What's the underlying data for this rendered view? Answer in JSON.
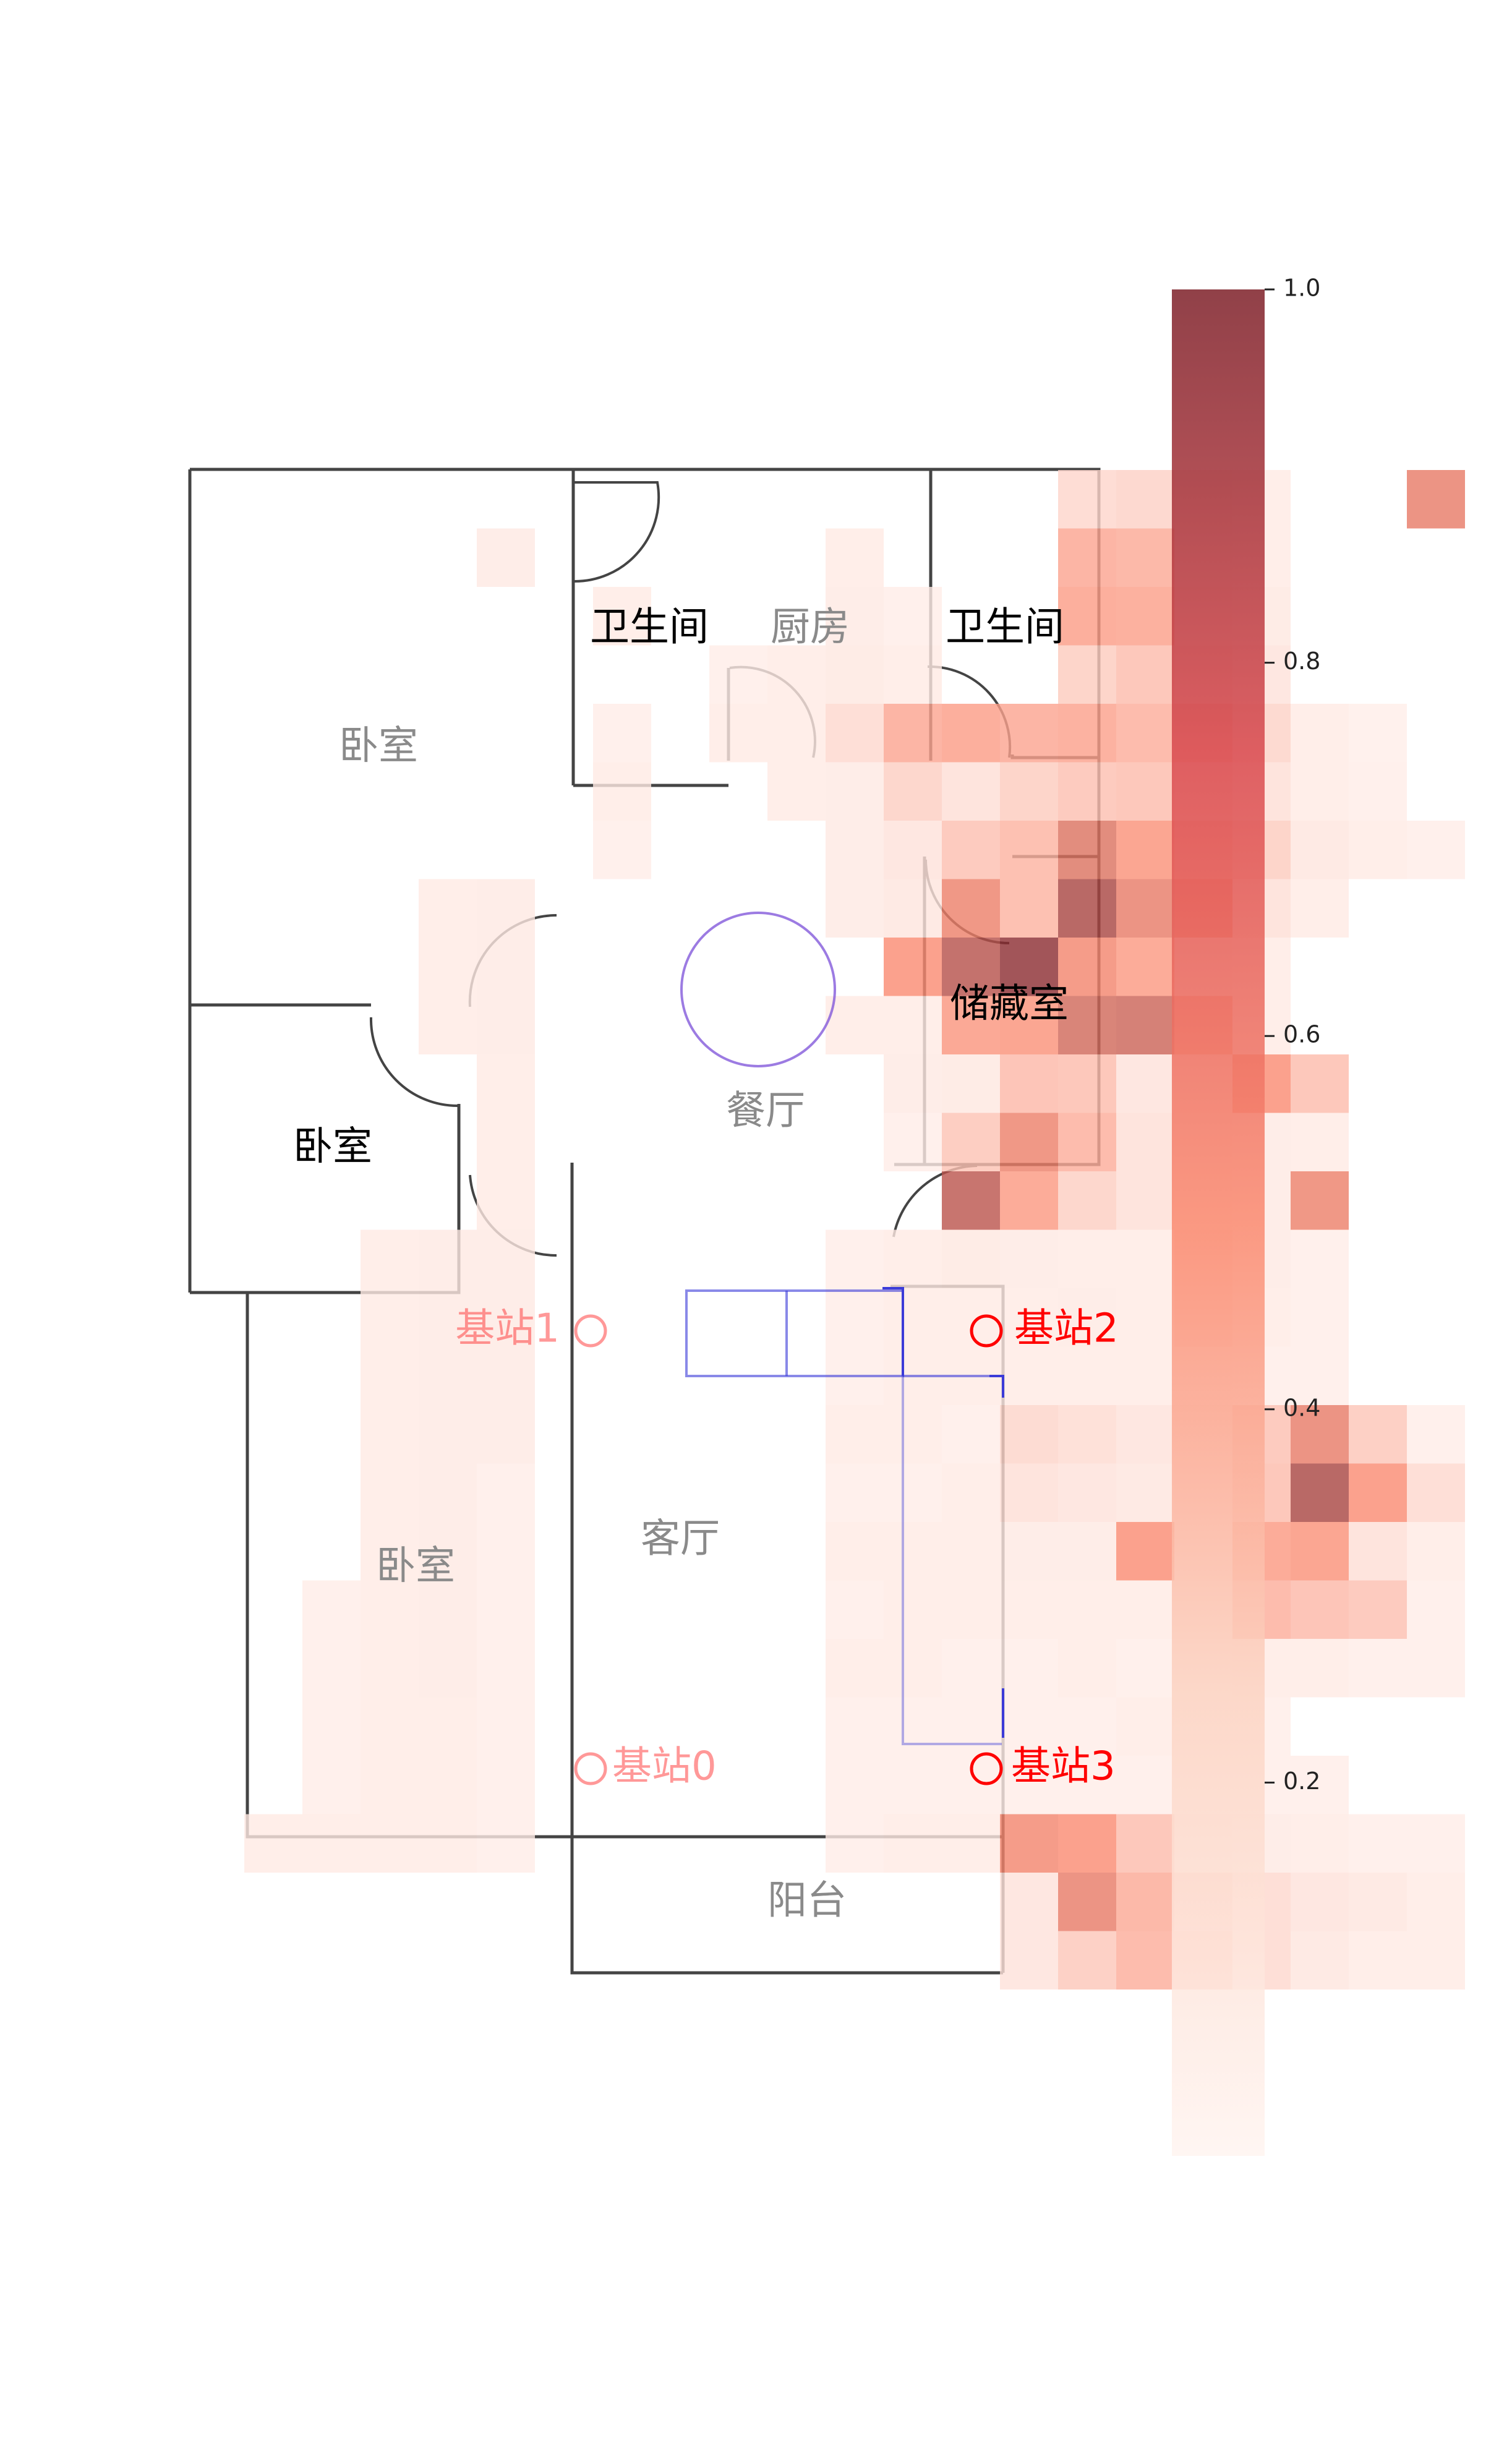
{
  "chart_data": {
    "type": "heatmap",
    "title": "",
    "xlabel": "",
    "ylabel": "",
    "grid": {
      "cols": 16,
      "rows": 26
    },
    "colorbar": {
      "range": [
        0.0,
        1.0
      ],
      "ticks": [
        {
          "value": 0.2,
          "label": "0.2"
        },
        {
          "value": 0.4,
          "label": "0.4"
        },
        {
          "value": 0.6,
          "label": "0.6"
        },
        {
          "value": 0.8,
          "label": "0.8"
        },
        {
          "value": 1.0,
          "label": "1.0"
        }
      ],
      "colors": {
        "low": "#fff4f0",
        "mid": "#fa8a70",
        "high": "#7d1f28"
      }
    },
    "rows": [
      [
        0,
        0,
        0,
        0,
        0,
        0,
        0,
        0,
        0,
        0.16,
        0.19,
        0.08,
        0.05,
        0,
        0,
        0.62
      ],
      [
        0,
        0,
        0,
        0,
        0,
        0.05,
        0,
        0,
        0,
        0.42,
        0.4,
        0.07,
        0.05,
        0,
        0,
        0
      ],
      [
        0,
        0.05,
        0,
        0,
        0,
        0.06,
        0.04,
        0,
        0,
        0.46,
        0.45,
        0.1,
        0.07,
        0,
        0,
        0
      ],
      [
        0,
        0,
        0,
        0.04,
        0.05,
        0.07,
        0.05,
        0,
        0,
        0.22,
        0.3,
        0.16,
        0.1,
        0,
        0,
        0
      ],
      [
        0,
        0.04,
        0,
        0.05,
        0.05,
        0.15,
        0.42,
        0.46,
        0.42,
        0.44,
        0.38,
        0.35,
        0.18,
        0.05,
        0.03,
        0
      ],
      [
        0,
        0.05,
        0,
        0,
        0.05,
        0.06,
        0.2,
        0.12,
        0.22,
        0.28,
        0.3,
        0.2,
        0.12,
        0.05,
        0.04,
        0
      ],
      [
        0,
        0.04,
        0,
        0,
        0,
        0.06,
        0.1,
        0.28,
        0.35,
        0.66,
        0.52,
        0.35,
        0.22,
        0.08,
        0.05,
        0.04
      ],
      [
        0,
        0,
        0,
        0,
        0,
        0.06,
        0.08,
        0.6,
        0.35,
        0.85,
        0.62,
        0.55,
        0.12,
        0.05,
        0,
        0
      ],
      [
        0,
        0,
        0,
        0,
        0,
        0,
        0.55,
        0.8,
        0.95,
        0.58,
        0.48,
        0.08,
        0.05,
        0,
        0,
        0
      ],
      [
        0,
        0,
        0,
        0,
        0,
        0.05,
        0.05,
        0.5,
        0.52,
        0.7,
        0.72,
        0.45,
        0.05,
        0,
        0,
        0
      ],
      [
        0,
        0,
        0,
        0,
        0,
        0,
        0.06,
        0.07,
        0.32,
        0.3,
        0.1,
        0.1,
        0.55,
        0.3,
        0,
        0
      ],
      [
        0,
        0,
        0,
        0,
        0,
        0,
        0.04,
        0.26,
        0.6,
        0.38,
        0.12,
        0.08,
        0.06,
        0.05,
        0,
        0
      ],
      [
        0,
        0,
        0,
        0,
        0,
        0,
        0,
        0.78,
        0.48,
        0.2,
        0.12,
        0.08,
        0.06,
        0.6,
        0,
        0
      ],
      [
        0,
        0,
        0,
        0,
        0,
        0.04,
        0.05,
        0.07,
        0.06,
        0.05,
        0.05,
        0.14,
        0.06,
        0.04,
        0,
        0
      ],
      [
        0,
        0,
        0,
        0,
        0,
        0.04,
        0.05,
        0.05,
        0.05,
        0.06,
        0.05,
        0.14,
        0.05,
        0.04,
        0,
        0
      ],
      [
        0,
        0,
        0,
        0,
        0,
        0.04,
        0.05,
        0.05,
        0.05,
        0.05,
        0.05,
        0.05,
        0.04,
        0.04,
        0,
        0
      ],
      [
        0,
        0,
        0,
        0,
        0,
        0.05,
        0.05,
        0.04,
        0.17,
        0.14,
        0.1,
        0.09,
        0.28,
        0.62,
        0.25,
        0.04
      ],
      [
        0,
        0,
        0,
        0,
        0,
        0.04,
        0.04,
        0.05,
        0.12,
        0.1,
        0.08,
        0.1,
        0.3,
        0.85,
        0.55,
        0.15
      ],
      [
        0,
        0,
        0,
        0,
        0,
        0.05,
        0.05,
        0.05,
        0.06,
        0.06,
        0.55,
        0.08,
        0.48,
        0.52,
        0.12,
        0.05
      ],
      [
        0,
        0,
        0,
        0,
        0,
        0.04,
        0.05,
        0.05,
        0.05,
        0.05,
        0.05,
        0.05,
        0.38,
        0.32,
        0.28,
        0.04
      ],
      [
        0,
        0,
        0,
        0,
        0,
        0.05,
        0.05,
        0.04,
        0.04,
        0.05,
        0.04,
        0.04,
        0.05,
        0.05,
        0.04,
        0.04
      ],
      [
        0,
        0,
        0,
        0,
        0,
        0.04,
        0.04,
        0.04,
        0.04,
        0.04,
        0.05,
        0.04,
        0.04,
        0,
        0,
        0
      ],
      [
        0,
        0,
        0,
        0,
        0,
        0.04,
        0.04,
        0.04,
        0.04,
        0.04,
        0.04,
        0.04,
        0.04,
        0.04,
        0,
        0
      ],
      [
        0,
        0,
        0,
        0,
        0,
        0.04,
        0.05,
        0.05,
        0.58,
        0.55,
        0.3,
        0.08,
        0.06,
        0.05,
        0.04,
        0.04
      ],
      [
        0,
        0,
        0,
        0,
        0,
        0,
        0,
        0,
        0.1,
        0.62,
        0.4,
        0.28,
        0.15,
        0.1,
        0.08,
        0.05
      ],
      [
        0,
        0,
        0,
        0,
        0,
        0,
        0,
        0,
        0.1,
        0.24,
        0.38,
        0.35,
        0.15,
        0.08,
        0.05,
        0.05
      ]
    ],
    "rows_left": [
      [
        0,
        0,
        0,
        0,
        0
      ],
      [
        0,
        0,
        0,
        0,
        0.06
      ],
      [
        0,
        0,
        0,
        0,
        0
      ],
      [
        0,
        0,
        0,
        0,
        0
      ],
      [
        0,
        0,
        0,
        0,
        0
      ],
      [
        0,
        0,
        0,
        0,
        0
      ],
      [
        0,
        0,
        0,
        0,
        0
      ],
      [
        0,
        0,
        0,
        0.05,
        0.06
      ],
      [
        0,
        0,
        0,
        0.05,
        0.06
      ],
      [
        0,
        0,
        0,
        0.05,
        0.06
      ],
      [
        0,
        0,
        0,
        0,
        0.05
      ],
      [
        0,
        0,
        0,
        0,
        0.05
      ],
      [
        0,
        0,
        0,
        0,
        0.05
      ],
      [
        0,
        0,
        0.05,
        0.06,
        0.06
      ],
      [
        0,
        0,
        0.05,
        0.06,
        0.06
      ],
      [
        0,
        0,
        0.05,
        0.06,
        0.06
      ],
      [
        0,
        0,
        0.05,
        0.06,
        0.06
      ],
      [
        0,
        0,
        0.05,
        0.06,
        0.04
      ],
      [
        0,
        0,
        0.05,
        0.06,
        0.04
      ],
      [
        0,
        0.04,
        0.05,
        0.06,
        0.04
      ],
      [
        0,
        0.04,
        0.05,
        0.06,
        0.04
      ],
      [
        0,
        0.04,
        0.05,
        0.05,
        0.04
      ],
      [
        0,
        0.04,
        0.05,
        0.05,
        0.04
      ],
      [
        0.05,
        0.05,
        0.05,
        0.05,
        0.04
      ],
      [
        0,
        0,
        0,
        0,
        0
      ],
      [
        0,
        0,
        0,
        0,
        0
      ]
    ],
    "rooms": [
      {
        "label": "卧室",
        "dim": true
      },
      {
        "label": "卧室",
        "dim": false
      },
      {
        "label": "卧室",
        "dim": true
      },
      {
        "label": "卫生间",
        "dim": false
      },
      {
        "label": "厨房",
        "dim": true
      },
      {
        "label": "卫生间",
        "dim": false
      },
      {
        "label": "储藏室",
        "dim": false
      },
      {
        "label": "餐厅",
        "dim": true
      },
      {
        "label": "客厅",
        "dim": true
      },
      {
        "label": "阳台",
        "dim": true
      }
    ],
    "base_stations": [
      {
        "label": "基站0",
        "color": "#ff4444",
        "dim": true
      },
      {
        "label": "基站1",
        "color": "#ff4444",
        "dim": true
      },
      {
        "label": "基站2",
        "color": "#ff0000",
        "dim": false
      },
      {
        "label": "基站3",
        "color": "#ff0000",
        "dim": false
      }
    ],
    "marker_color": "#7b4fd8",
    "furniture_color": "#3b3bd8",
    "wall_color": "#444444"
  }
}
